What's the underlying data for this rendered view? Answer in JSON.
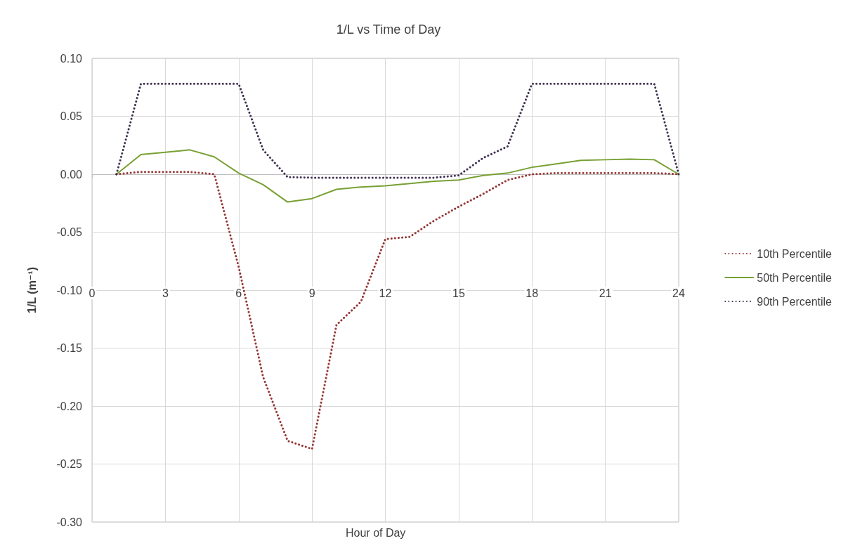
{
  "chart_data": {
    "type": "line",
    "title": "1/L vs Time of Day",
    "xlabel": "Hour of Day",
    "ylabel": "1/L (m⁻¹)",
    "x": [
      1,
      2,
      3,
      4,
      5,
      6,
      7,
      8,
      9,
      10,
      11,
      12,
      13,
      14,
      15,
      16,
      17,
      18,
      19,
      20,
      21,
      22,
      23,
      24
    ],
    "series": [
      {
        "name": "10th Percentile",
        "color": "#953735",
        "line_style": "dotted",
        "values": [
          0,
          0.002,
          0.002,
          0.002,
          0,
          -0.08,
          -0.175,
          -0.23,
          -0.237,
          -0.13,
          -0.11,
          -0.056,
          -0.054,
          -0.04,
          -0.028,
          -0.017,
          -0.005,
          0,
          0.001,
          0.001,
          0.001,
          0.001,
          0.001,
          0
        ]
      },
      {
        "name": "50th Percentile",
        "color": "#77a033",
        "line_style": "solid",
        "values": [
          0,
          0.017,
          0.019,
          0.021,
          0.015,
          0.001,
          -0.009,
          -0.024,
          -0.021,
          -0.013,
          -0.011,
          -0.01,
          -0.008,
          -0.006,
          -0.005,
          -0.001,
          0.001,
          0.006,
          0.009,
          0.012,
          0.0125,
          0.013,
          0.0125,
          0
        ]
      },
      {
        "name": "90th Percentile",
        "color": "#403152",
        "line_style": "dotted",
        "values": [
          0,
          0.078,
          0.078,
          0.078,
          0.078,
          0.078,
          0.021,
          -0.0025,
          -0.003,
          -0.003,
          -0.003,
          -0.003,
          -0.003,
          -0.003,
          -0.001,
          0.014,
          0.024,
          0.078,
          0.078,
          0.078,
          0.078,
          0.078,
          0.078,
          0
        ]
      }
    ],
    "xlim": [
      0,
      24
    ],
    "xticks": [
      0,
      3,
      6,
      9,
      12,
      15,
      18,
      21,
      24
    ],
    "ylim": [
      -0.3,
      0.1
    ],
    "yticks": [
      {
        "value": -0.3,
        "label": "-0.30"
      },
      {
        "value": -0.25,
        "label": "-0.25"
      },
      {
        "value": -0.2,
        "label": "-0.20"
      },
      {
        "value": -0.15,
        "label": "-0.15"
      },
      {
        "value": -0.1,
        "label": "-0.10"
      },
      {
        "value": -0.05,
        "label": "-0.05"
      },
      {
        "value": 0,
        "label": "0.00"
      },
      {
        "value": 0.05,
        "label": "0.05"
      },
      {
        "value": 0.1,
        "label": "0.10"
      }
    ],
    "grid": true,
    "legend": "right",
    "marker": "none"
  }
}
